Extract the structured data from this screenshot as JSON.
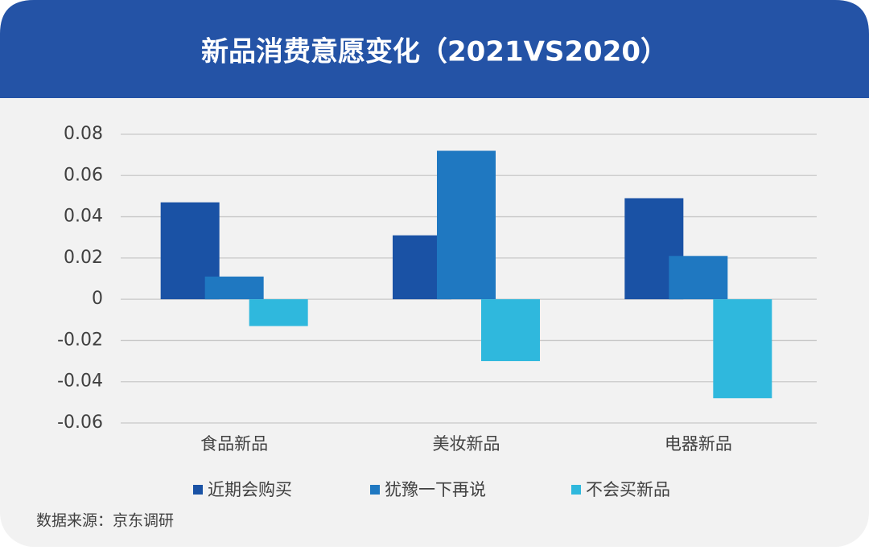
{
  "chart_data": {
    "type": "bar",
    "title": "新品消费意愿变化（2021VS2020）",
    "categories": [
      "食品新品",
      "美妆新品",
      "电器新品"
    ],
    "series": [
      {
        "name": "近期会购买",
        "color": "#1a52a5",
        "values": [
          0.047,
          0.031,
          0.049
        ]
      },
      {
        "name": "犹豫一下再说",
        "color": "#1f78c1",
        "values": [
          0.011,
          0.072,
          0.021
        ]
      },
      {
        "name": "不会买新品",
        "color": "#2fb8dd",
        "values": [
          -0.013,
          -0.03,
          -0.048
        ]
      }
    ],
    "ylim": [
      -0.06,
      0.08
    ],
    "yticks": [
      -0.06,
      -0.04,
      -0.02,
      0,
      0.02,
      0.04,
      0.06,
      0.08
    ],
    "grid": true,
    "legend": "bottom",
    "source": "数据来源：京东调研"
  }
}
